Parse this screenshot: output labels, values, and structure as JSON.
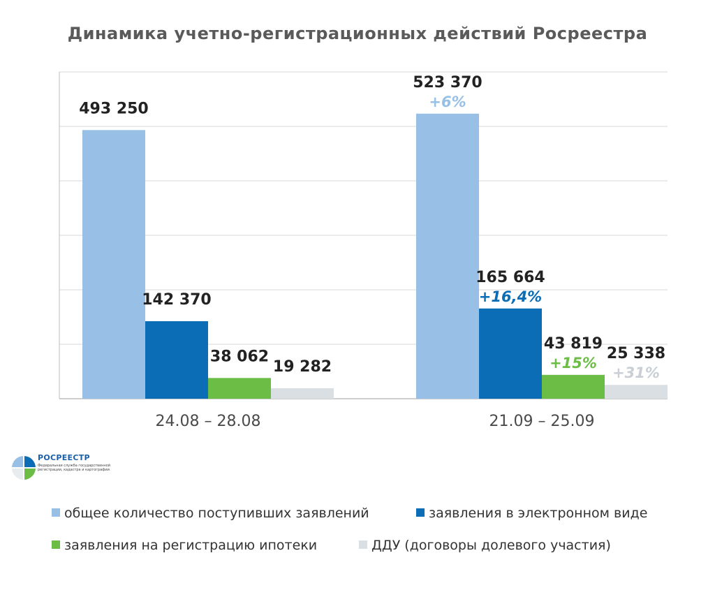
{
  "title": "Динамика учетно-регистрационных действий Росреестра",
  "logo": {
    "name": "РОСРЕЕСТР",
    "subtitle": "Федеральная служба государственной регистрации, кадастра и картографии"
  },
  "colors": {
    "total": "#98c0e6",
    "electronic": "#0a6db5",
    "mortgage": "#6cbd45",
    "ddu": "#d9dfe3",
    "grid": "#d7d7d7",
    "axis": "#bdbdbd"
  },
  "legend": [
    {
      "key": "total",
      "label": "общее количество  поступивших заявлений"
    },
    {
      "key": "electronic",
      "label": "заявления в электронном виде"
    },
    {
      "key": "mortgage",
      "label": "заявления на регистрацию ипотеки"
    },
    {
      "key": "ddu",
      "label": "ДДУ (договоры долевого участия)"
    }
  ],
  "chart_data": {
    "type": "bar",
    "title": "Динамика учетно-регистрационных действий Росреестра",
    "categories": [
      "24.08 – 28.08",
      "21.09 – 25.09"
    ],
    "ylim": [
      0,
      600000
    ],
    "grid": true,
    "legend_position": "bottom",
    "series": [
      {
        "key": "total",
        "name": "общее количество  поступивших заявлений",
        "values": [
          493250,
          523370
        ],
        "labels": [
          "493 250",
          "523 370"
        ],
        "changes": [
          "",
          "+6%"
        ],
        "label_color": "#222222",
        "change_color": "#98c0e6"
      },
      {
        "key": "electronic",
        "name": "заявления в электронном виде",
        "values": [
          142370,
          165664
        ],
        "labels": [
          "142 370",
          "165 664"
        ],
        "changes": [
          "",
          "+16,4%"
        ],
        "label_color": "#222222",
        "change_color": "#0a6db5"
      },
      {
        "key": "mortgage",
        "name": "заявления на регистрацию ипотеки",
        "values": [
          38062,
          43819
        ],
        "labels": [
          "38 062",
          "43 819"
        ],
        "changes": [
          "",
          "+15%"
        ],
        "label_color": "#222222",
        "change_color": "#6cbd45"
      },
      {
        "key": "ddu",
        "name": "ДДУ (договоры долевого участия)",
        "values": [
          19282,
          25338
        ],
        "labels": [
          "19 282",
          "25 338"
        ],
        "changes": [
          "",
          "+31%"
        ],
        "label_color": "#222222",
        "change_color": "#c9cfd4"
      }
    ]
  }
}
